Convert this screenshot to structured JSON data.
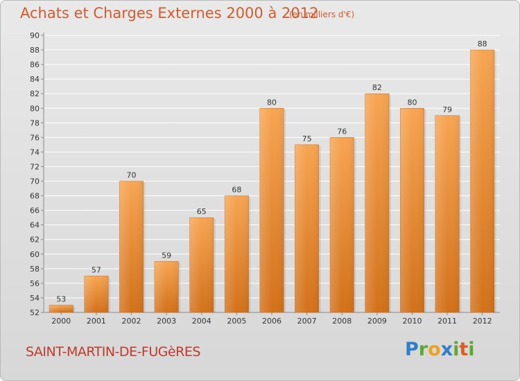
{
  "header": {
    "title": "Achats et Charges Externes 2000 à 2012",
    "subtitle": "(en milliers d'€)"
  },
  "footer": {
    "town": "SAINT-MARTIN-DE-FUGèRES",
    "logo_letters": [
      {
        "char": "P",
        "color": "#2e7ec8"
      },
      {
        "char": "r",
        "color": "#5aaa32"
      },
      {
        "char": "o",
        "color": "#f0a020"
      },
      {
        "char": "x",
        "color": "#2e7ec8"
      },
      {
        "char": "i",
        "color": "#5aaa32"
      },
      {
        "char": "t",
        "color": "#e05a28"
      },
      {
        "char": "i",
        "color": "#5aaa32"
      }
    ]
  },
  "colors": {
    "bar_top": "#f7a552",
    "bar_bottom": "#d2711a",
    "grid": "#ffffff",
    "text": "#333333"
  },
  "chart_data": {
    "type": "bar",
    "title": "Achats et Charges Externes 2000 à 2012",
    "subtitle": "(en milliers d'€)",
    "categories": [
      "2000",
      "2001",
      "2002",
      "2003",
      "2004",
      "2005",
      "2006",
      "2007",
      "2008",
      "2009",
      "2010",
      "2011",
      "2012"
    ],
    "values": [
      53,
      57,
      70,
      59,
      65,
      68,
      80,
      75,
      76,
      82,
      80,
      79,
      88
    ],
    "ylim": [
      52,
      90
    ],
    "yticks": [
      52,
      54,
      56,
      58,
      60,
      62,
      64,
      66,
      68,
      70,
      72,
      74,
      76,
      78,
      80,
      82,
      84,
      86,
      88,
      90
    ],
    "grid": true,
    "xlabel": "",
    "ylabel": ""
  }
}
